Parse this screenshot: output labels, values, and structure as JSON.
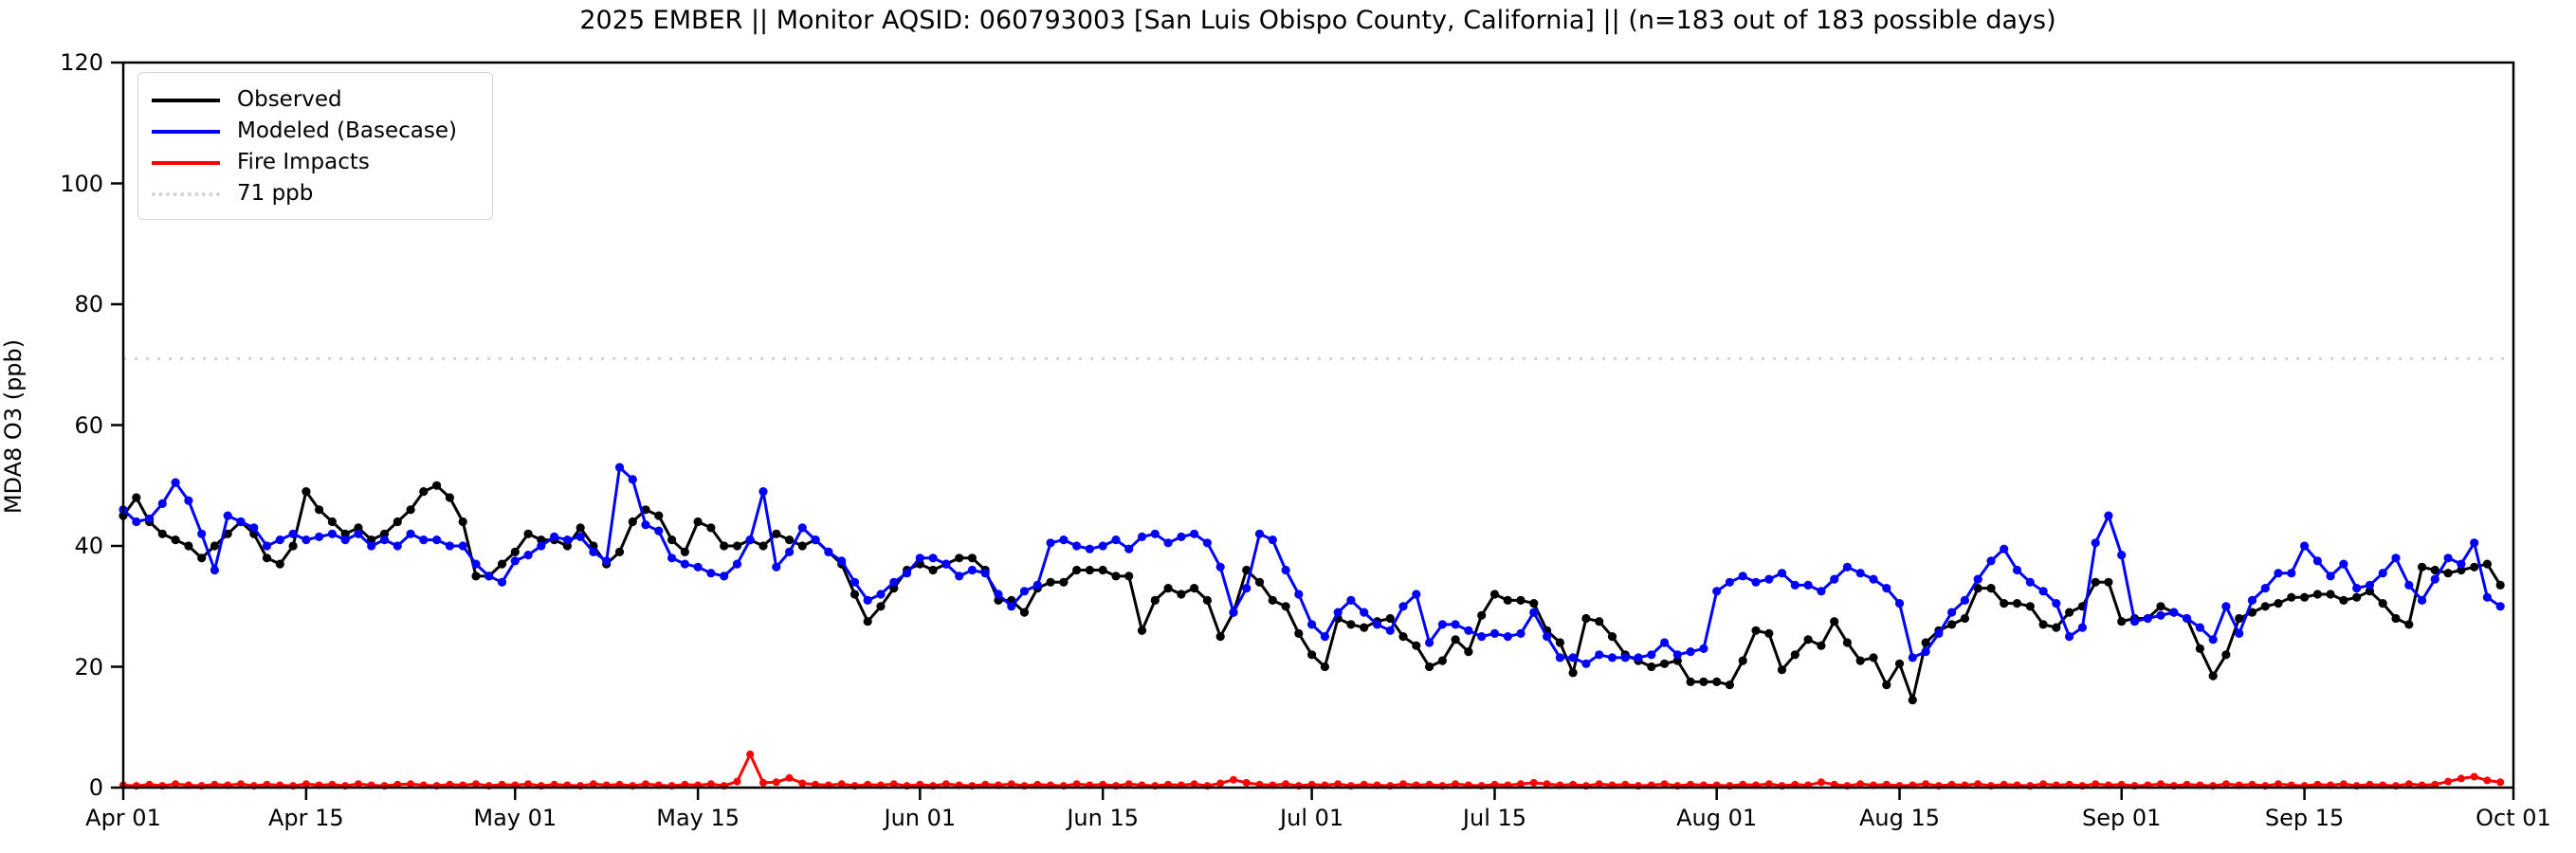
{
  "title": "2025 EMBER || Monitor AQSID: 060793003 [San Luis Obispo County, California] || (n=183 out of 183 possible days)",
  "axes": {
    "ylabel": "MDA8 O3 (ppb)",
    "yticks": [
      0,
      20,
      40,
      60,
      80,
      100,
      120
    ],
    "xticks": [
      {
        "label": "Apr 01",
        "day": 0
      },
      {
        "label": "Apr 15",
        "day": 14
      },
      {
        "label": "May 01",
        "day": 30
      },
      {
        "label": "May 15",
        "day": 44
      },
      {
        "label": "Jun 01",
        "day": 61
      },
      {
        "label": "Jun 15",
        "day": 75
      },
      {
        "label": "Jul 01",
        "day": 91
      },
      {
        "label": "Jul 15",
        "day": 105
      },
      {
        "label": "Aug 01",
        "day": 122
      },
      {
        "label": "Aug 15",
        "day": 136
      },
      {
        "label": "Sep 01",
        "day": 153
      },
      {
        "label": "Sep 15",
        "day": 167
      },
      {
        "label": "Oct 01",
        "day": 183
      }
    ]
  },
  "legend": {
    "items": [
      {
        "label": "Observed",
        "color": "#000000",
        "style": "solid"
      },
      {
        "label": "Modeled (Basecase)",
        "color": "#0000ff",
        "style": "solid"
      },
      {
        "label": "Fire Impacts",
        "color": "#ff0000",
        "style": "solid"
      },
      {
        "label": "71 ppb",
        "color": "#d3d3d3",
        "style": "dotted"
      }
    ]
  },
  "chart_data": {
    "type": "line",
    "title": "2025 EMBER || Monitor AQSID: 060793003 [San Luis Obispo County, California] || (n=183 out of 183 possible days)",
    "xlabel": "",
    "ylabel": "MDA8 O3 (ppb)",
    "ylim": [
      0,
      120
    ],
    "x_start": "Apr 01",
    "x_end": "Oct 01",
    "days_total": 183,
    "grid": false,
    "legend_position": "upper left",
    "threshold": {
      "label": "71 ppb",
      "value": 71,
      "color": "#d3d3d3",
      "linestyle": "dotted"
    },
    "series": [
      {
        "name": "Observed",
        "color": "#000000",
        "marker": "circle",
        "values": [
          45,
          48,
          44,
          42,
          41,
          40,
          38,
          40,
          42,
          44,
          42,
          38,
          37,
          40,
          49,
          46,
          44,
          42,
          43,
          41,
          42,
          44,
          46,
          49,
          50,
          48,
          44,
          35,
          35,
          37,
          39,
          42,
          41,
          41,
          40,
          43,
          40,
          37,
          39,
          44,
          46,
          45,
          41,
          39,
          44,
          43,
          40,
          40,
          41,
          40,
          42,
          41,
          40,
          41,
          39,
          37,
          32,
          27.5,
          30,
          33,
          36,
          37,
          36,
          37,
          38,
          38,
          36,
          31,
          31,
          29,
          33,
          34,
          34,
          36,
          36,
          36,
          35,
          35,
          26,
          31,
          33,
          32,
          33,
          31,
          25,
          29,
          36,
          34,
          31,
          30,
          25.5,
          22,
          20,
          28,
          27,
          26.5,
          27.5,
          28,
          25,
          23.5,
          20,
          21,
          24.5,
          22.5,
          28.5,
          32,
          31,
          31,
          30.5,
          26,
          24,
          19,
          28,
          27.5,
          25,
          22,
          21,
          20,
          20.5,
          21,
          17.5,
          17.5,
          17.5,
          17,
          21,
          26,
          25.5,
          19.5,
          22,
          24.5,
          23.5,
          27.5,
          24,
          21,
          21.5,
          17,
          20.5,
          14.5,
          24,
          26,
          27,
          28,
          33,
          33,
          30.5,
          30.5,
          30,
          27,
          26.5,
          29,
          30,
          34,
          34,
          27.5,
          28,
          28,
          30,
          29,
          28,
          23,
          18.5,
          22,
          28,
          29,
          30,
          30.5,
          31.5,
          31.5,
          32,
          32,
          31,
          31.5,
          32.5,
          30.5,
          28,
          27,
          36.5,
          36,
          35.5,
          36,
          36.5,
          37,
          33.5
        ]
      },
      {
        "name": "Modeled (Basecase)",
        "color": "#0000ff",
        "marker": "circle",
        "values": [
          46,
          44,
          44.5,
          47,
          50.5,
          47.5,
          42,
          36,
          45,
          44,
          43,
          40,
          41,
          42,
          41,
          41.5,
          42,
          41,
          42,
          40,
          41,
          40,
          42,
          41,
          41,
          40,
          40,
          37,
          35,
          34,
          37.5,
          38.5,
          40,
          41.5,
          41,
          41.5,
          39,
          37.5,
          53,
          51,
          43.5,
          42.5,
          38,
          37,
          36.5,
          35.5,
          35,
          37,
          41,
          49,
          36.5,
          39,
          43,
          41,
          39,
          37.5,
          34,
          31,
          32,
          34,
          35.5,
          38,
          38,
          37,
          35,
          36,
          35.5,
          32,
          30,
          32.5,
          33.5,
          40.5,
          41,
          40,
          39.5,
          40,
          41,
          39.5,
          41.5,
          42,
          40.5,
          41.5,
          42,
          40.5,
          36.5,
          29,
          33,
          42,
          41,
          36,
          32,
          27,
          25,
          29,
          31,
          29,
          27,
          26,
          30,
          32,
          24,
          27,
          27,
          26,
          25,
          25.5,
          25,
          25.5,
          29,
          25,
          21.5,
          21.5,
          20.5,
          22,
          21.5,
          21.5,
          21.5,
          22,
          24,
          22,
          22.5,
          23,
          32.5,
          34,
          35,
          34,
          34.5,
          35.5,
          33.5,
          33.5,
          32.5,
          34.5,
          36.5,
          35.5,
          34.5,
          33,
          30.5,
          21.5,
          22.5,
          25.5,
          29,
          31,
          34.5,
          37.5,
          39.5,
          36,
          34,
          32.5,
          30.5,
          25,
          26.5,
          40.5,
          45,
          38.5,
          27.5,
          28,
          28.5,
          29,
          28,
          26.5,
          24.5,
          30,
          25.5,
          31,
          33,
          35.5,
          35.5,
          40,
          37.5,
          35,
          37,
          33,
          33.5,
          35.5,
          38,
          33.5,
          31,
          34.5,
          38,
          37,
          40.5,
          31.5,
          30
        ]
      },
      {
        "name": "Fire Impacts",
        "color": "#ff0000",
        "marker": "circle",
        "values": [
          0.4,
          0.3,
          0.5,
          0.3,
          0.6,
          0.4,
          0.3,
          0.5,
          0.4,
          0.6,
          0.3,
          0.5,
          0.4,
          0.3,
          0.6,
          0.4,
          0.5,
          0.3,
          0.6,
          0.4,
          0.3,
          0.5,
          0.6,
          0.4,
          0.3,
          0.5,
          0.4,
          0.6,
          0.3,
          0.5,
          0.4,
          0.6,
          0.3,
          0.5,
          0.4,
          0.3,
          0.6,
          0.4,
          0.5,
          0.3,
          0.6,
          0.4,
          0.3,
          0.5,
          0.4,
          0.6,
          0.3,
          1.0,
          5.5,
          0.8,
          0.9,
          1.6,
          0.7,
          0.5,
          0.4,
          0.6,
          0.3,
          0.5,
          0.4,
          0.6,
          0.3,
          0.5,
          0.3,
          0.6,
          0.4,
          0.3,
          0.5,
          0.4,
          0.6,
          0.3,
          0.5,
          0.4,
          0.3,
          0.6,
          0.4,
          0.5,
          0.3,
          0.6,
          0.4,
          0.3,
          0.5,
          0.4,
          0.6,
          0.3,
          0.7,
          1.3,
          0.8,
          0.5,
          0.4,
          0.6,
          0.3,
          0.5,
          0.4,
          0.6,
          0.3,
          0.5,
          0.4,
          0.3,
          0.6,
          0.4,
          0.5,
          0.3,
          0.6,
          0.4,
          0.3,
          0.5,
          0.4,
          0.6,
          0.8,
          0.6,
          0.4,
          0.5,
          0.3,
          0.6,
          0.4,
          0.5,
          0.3,
          0.4,
          0.6,
          0.3,
          0.5,
          0.4,
          0.4,
          0.3,
          0.5,
          0.4,
          0.6,
          0.3,
          0.5,
          0.4,
          0.9,
          0.5,
          0.3,
          0.6,
          0.4,
          0.5,
          0.3,
          0.4,
          0.6,
          0.3,
          0.5,
          0.4,
          0.6,
          0.3,
          0.5,
          0.4,
          0.3,
          0.6,
          0.4,
          0.5,
          0.3,
          0.6,
          0.4,
          0.5,
          0.3,
          0.4,
          0.6,
          0.3,
          0.5,
          0.4,
          0.3,
          0.6,
          0.4,
          0.5,
          0.3,
          0.6,
          0.4,
          0.3,
          0.5,
          0.4,
          0.6,
          0.3,
          0.5,
          0.4,
          0.3,
          0.6,
          0.4,
          0.5,
          1.0,
          1.5,
          1.8,
          1.2,
          0.9
        ]
      }
    ]
  }
}
